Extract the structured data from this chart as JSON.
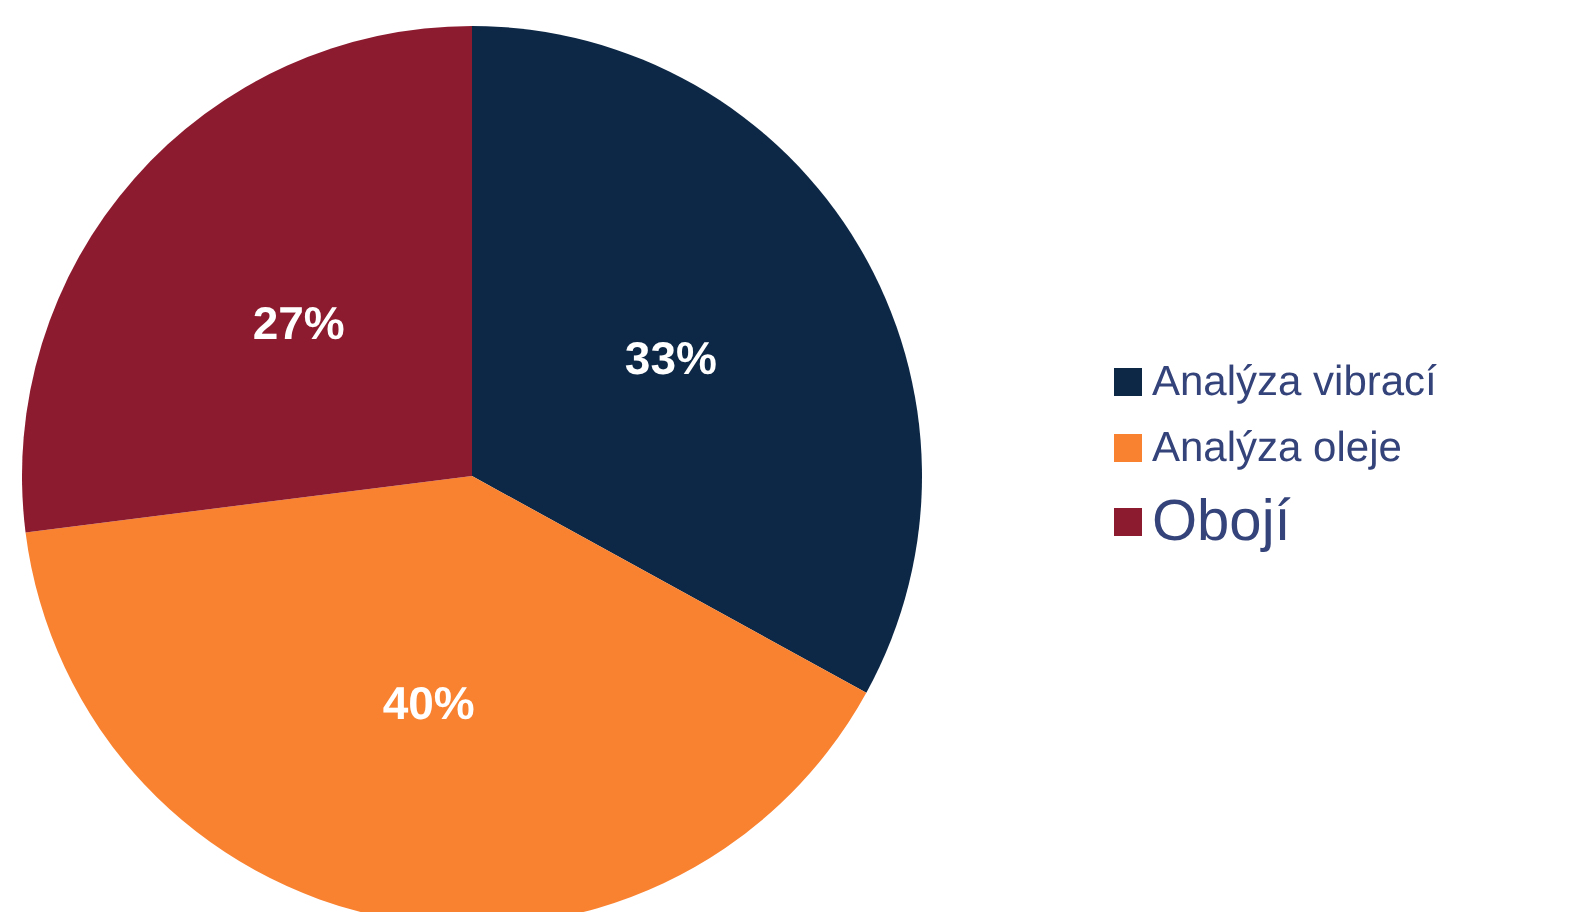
{
  "chart_data": {
    "type": "pie",
    "categories": [
      "Analýza vibrací",
      "Analýza oleje",
      "Obojí"
    ],
    "values": [
      33,
      40,
      27
    ],
    "colors": [
      "#0c2846",
      "#f98231",
      "#8c1b2f"
    ],
    "value_labels": [
      "33%",
      "40%",
      "27%"
    ],
    "legend": "right"
  }
}
